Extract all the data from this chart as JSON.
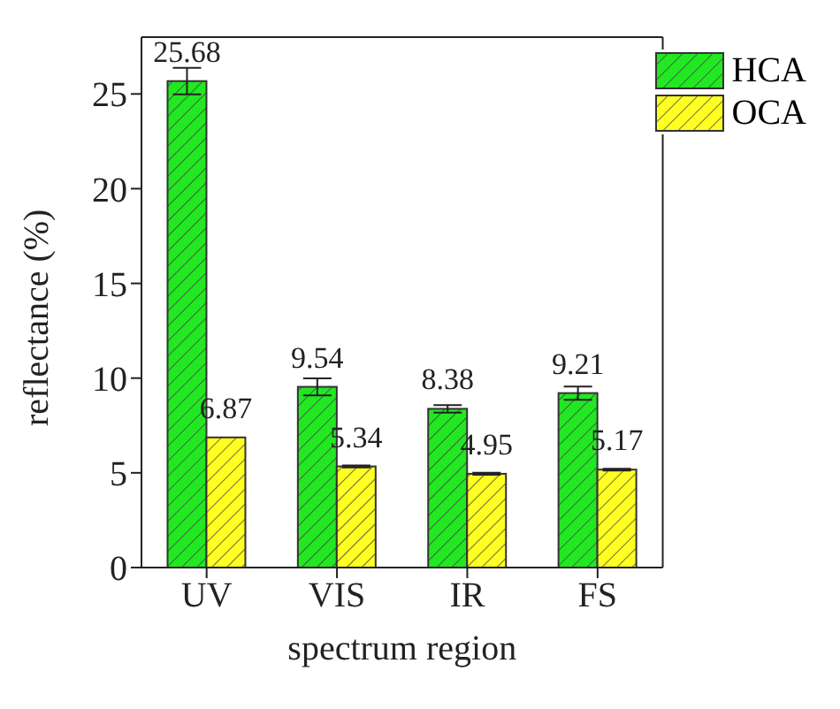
{
  "chart_data": {
    "type": "bar",
    "xlabel": "spectrum region",
    "ylabel": "reflectance (%)",
    "categories": [
      "UV",
      "VIS",
      "IR",
      "FS"
    ],
    "series": [
      {
        "name": "HCA",
        "color": "#22e822",
        "values": [
          25.68,
          9.54,
          8.38,
          9.21
        ],
        "errors": [
          0.7,
          0.45,
          0.2,
          0.35
        ]
      },
      {
        "name": "OCA",
        "color": "#ffff22",
        "values": [
          6.87,
          5.34,
          4.95,
          5.17
        ],
        "errors": [
          null,
          0.05,
          0.05,
          0.05
        ]
      }
    ],
    "ylim": [
      0,
      28
    ],
    "yticks": [
      0,
      5,
      10,
      15,
      20,
      25
    ],
    "data_labels": true,
    "grid": false,
    "legend": "top right"
  }
}
